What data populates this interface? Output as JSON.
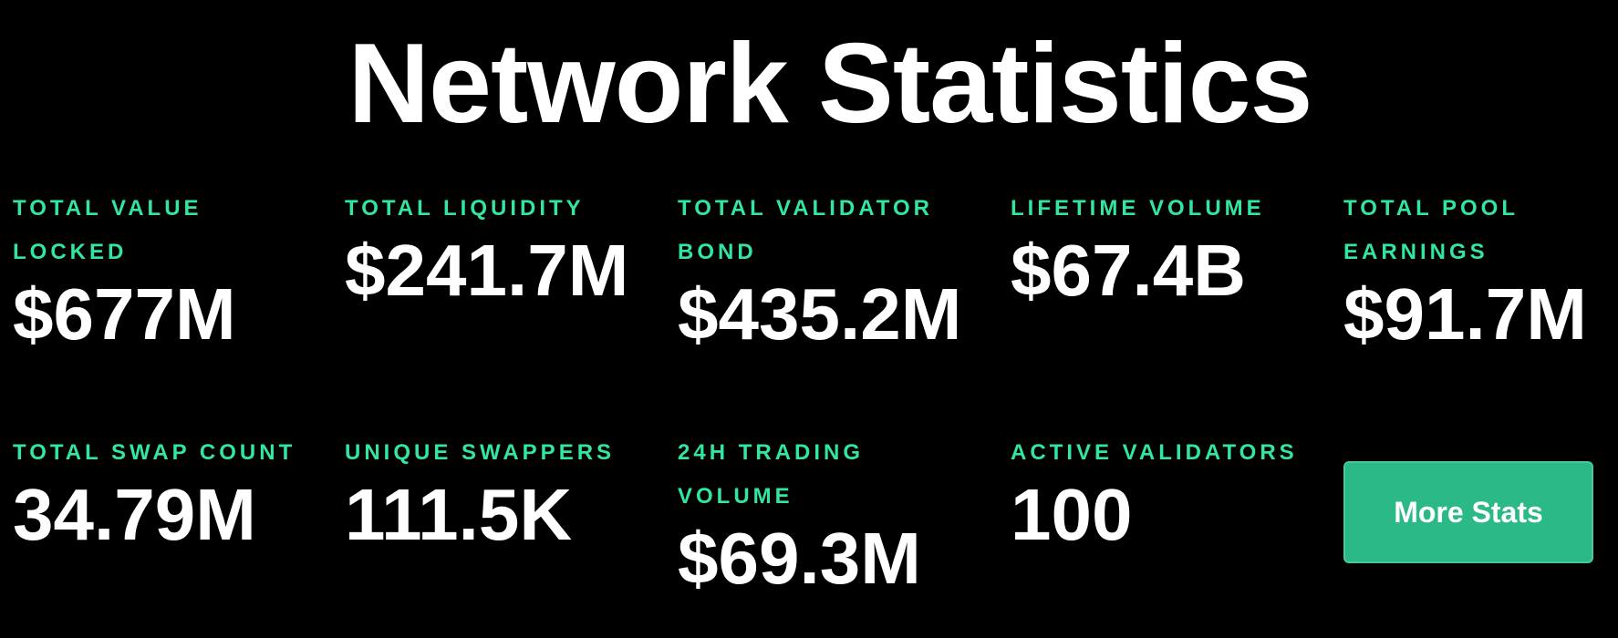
{
  "header": {
    "title": "Network Statistics"
  },
  "stats": [
    {
      "label": "Total Value Locked",
      "value": "$677M"
    },
    {
      "label": "Total Liquidity",
      "value": "$241.7M"
    },
    {
      "label": "Total Validator Bond",
      "value": "$435.2M"
    },
    {
      "label": "Lifetime Volume",
      "value": "$67.4B"
    },
    {
      "label": "Total Pool Earnings",
      "value": "$91.7M"
    },
    {
      "label": "Total Swap Count",
      "value": "34.79M"
    },
    {
      "label": "Unique Swappers",
      "value": "111.5K"
    },
    {
      "label": "24H Trading Volume",
      "value": "$69.3M"
    },
    {
      "label": "Active Validators",
      "value": "100"
    }
  ],
  "actions": {
    "more_stats_label": "More Stats"
  },
  "colors": {
    "background": "#000000",
    "label_accent": "#33e6a0",
    "button_bg": "#2bba87",
    "text": "#ffffff"
  }
}
